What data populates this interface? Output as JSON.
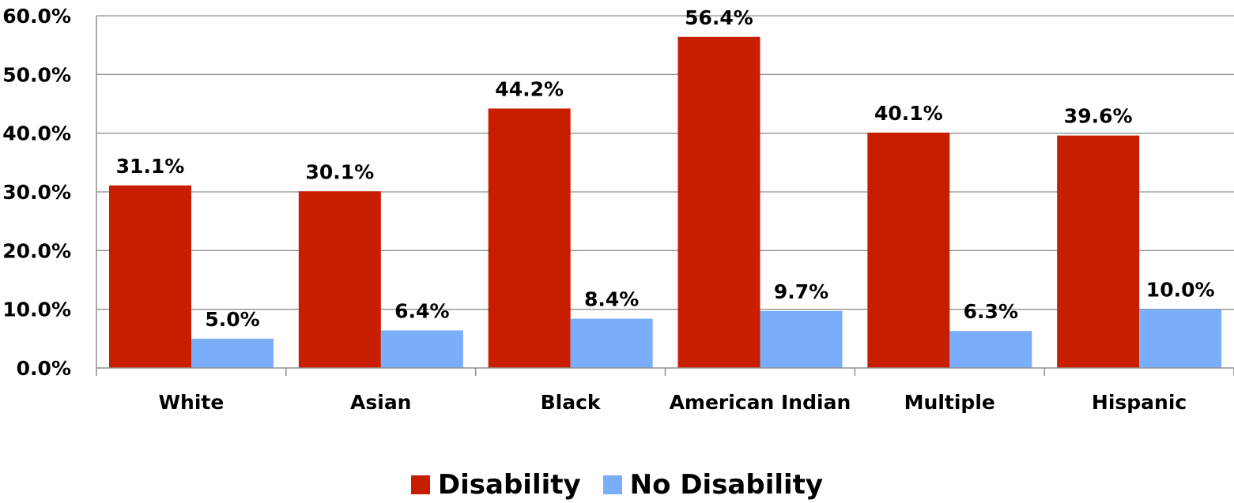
{
  "chart_data": {
    "type": "bar",
    "categories": [
      "White",
      "Asian",
      "Black",
      "American Indian",
      "Multiple",
      "Hispanic"
    ],
    "series": [
      {
        "name": "Disability",
        "values": [
          31.1,
          30.1,
          44.2,
          56.4,
          40.1,
          39.6
        ],
        "color": "#c81e00"
      },
      {
        "name": "No Disability",
        "values": [
          5.0,
          6.4,
          8.4,
          9.7,
          6.3,
          10.0
        ],
        "color": "#7aaefd"
      }
    ],
    "data_labels": [
      [
        "31.1%",
        "30.1%",
        "44.2%",
        "56.4%",
        "40.1%",
        "39.6%"
      ],
      [
        "5.0%",
        "6.4%",
        "8.4%",
        "9.7%",
        "6.3%",
        "10.0%"
      ]
    ],
    "y_ticks": [
      "0.0%",
      "10.0%",
      "20.0%",
      "30.0%",
      "40.0%",
      "50.0%",
      "60.0%"
    ],
    "ylim": [
      0,
      60
    ],
    "grid": true,
    "legend_position": "bottom"
  }
}
